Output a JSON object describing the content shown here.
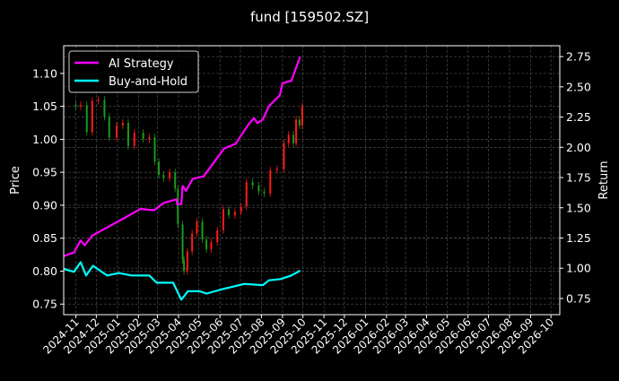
{
  "chart_data": {
    "type": "line",
    "title": "fund [159502.SZ]",
    "ylabel_left": "Price",
    "ylabel_right": "Return",
    "ylim_left": [
      0.734,
      1.142
    ],
    "ylim_right": [
      0.616,
      2.84
    ],
    "xlim": [
      "2024-10-14",
      "2026-10-14"
    ],
    "grid": true,
    "legend_position": "top-left",
    "left_ticks": [
      "0.75",
      "0.80",
      "0.85",
      "0.90",
      "0.95",
      "1.00",
      "1.05",
      "1.10"
    ],
    "right_ticks": [
      "0.75",
      "1.00",
      "1.25",
      "1.50",
      "1.75",
      "2.00",
      "2.25",
      "2.50",
      "2.75"
    ],
    "x_ticks": [
      "2024-11",
      "2024-12",
      "2025-01",
      "2025-02",
      "2025-03",
      "2025-04",
      "2025-05",
      "2025-06",
      "2025-07",
      "2025-08",
      "2025-09",
      "2025-10",
      "2025-11",
      "2025-12",
      "2026-01",
      "2026-02",
      "2026-03",
      "2026-04",
      "2026-05",
      "2026-06",
      "2026-07",
      "2026-08",
      "2026-09",
      "2026-10"
    ],
    "colors": {
      "up": "#ff1a1a",
      "down": "#1a9a1a",
      "strategy": "#ff00ff",
      "buy_hold": "#00ffff",
      "grid": "#555555"
    },
    "price_candles": {
      "axis": "left",
      "dates": [
        "2024-10-14",
        "2024-11-01",
        "2024-11-08",
        "2024-11-17",
        "2024-11-25",
        "2024-12-04",
        "2024-12-13",
        "2024-12-20",
        "2024-12-31",
        "2025-01-09",
        "2025-01-17",
        "2025-01-26",
        "2025-02-08",
        "2025-02-17",
        "2025-02-25",
        "2025-03-03",
        "2025-03-10",
        "2025-03-19",
        "2025-03-27",
        "2025-03-31",
        "2025-04-07",
        "2025-04-09",
        "2025-04-14",
        "2025-04-21",
        "2025-04-28",
        "2025-05-06",
        "2025-05-12",
        "2025-05-19",
        "2025-05-28",
        "2025-06-06",
        "2025-06-14",
        "2025-06-23",
        "2025-07-02",
        "2025-07-10",
        "2025-07-19",
        "2025-07-28",
        "2025-08-05",
        "2025-08-14",
        "2025-08-24",
        "2025-09-03",
        "2025-09-10",
        "2025-09-17",
        "2025-09-21",
        "2025-09-26",
        "2025-09-30"
      ],
      "close": [
        1.052,
        1.05,
        1.052,
        1.011,
        1.058,
        1.06,
        1.034,
        1.003,
        1.021,
        1.025,
        0.99,
        1.01,
        1.0,
        1.003,
        0.966,
        0.946,
        0.941,
        0.95,
        0.925,
        0.871,
        0.817,
        0.8,
        0.83,
        0.857,
        0.875,
        0.848,
        0.833,
        0.844,
        0.862,
        0.894,
        0.885,
        0.89,
        0.898,
        0.935,
        0.93,
        0.921,
        0.918,
        0.953,
        0.955,
        0.994,
        1.007,
        0.994,
        1.03,
        1.021,
        1.05
      ]
    },
    "series": [
      {
        "name": "AI Strategy",
        "axis": "right",
        "dates": [
          "2024-10-14",
          "2024-10-29",
          "2024-11-08",
          "2024-11-14",
          "2024-11-25",
          "2024-12-21",
          "2025-01-13",
          "2025-02-04",
          "2025-02-24",
          "2025-03-10",
          "2025-03-29",
          "2025-03-30",
          "2025-04-05",
          "2025-04-07",
          "2025-04-12",
          "2025-04-22",
          "2025-05-08",
          "2025-05-21",
          "2025-06-07",
          "2025-06-24",
          "2025-07-13",
          "2025-07-21",
          "2025-07-26",
          "2025-08-03",
          "2025-08-12",
          "2025-08-28",
          "2025-09-01",
          "2025-09-14",
          "2025-09-27"
        ],
        "values": [
          1.1,
          1.13,
          1.23,
          1.19,
          1.27,
          1.35,
          1.42,
          1.49,
          1.48,
          1.54,
          1.57,
          1.53,
          1.53,
          1.68,
          1.64,
          1.74,
          1.76,
          1.86,
          1.99,
          2.03,
          2.19,
          2.24,
          2.2,
          2.23,
          2.34,
          2.43,
          2.53,
          2.55,
          2.75
        ]
      },
      {
        "name": "Buy-and-Hold",
        "axis": "right",
        "dates": [
          "2024-10-14",
          "2024-10-29",
          "2024-11-08",
          "2024-11-16",
          "2024-11-26",
          "2024-12-17",
          "2025-01-03",
          "2025-01-22",
          "2025-02-17",
          "2025-02-28",
          "2025-03-24",
          "2025-04-05",
          "2025-04-15",
          "2025-05-02",
          "2025-05-12",
          "2025-06-07",
          "2025-07-07",
          "2025-08-03",
          "2025-08-12",
          "2025-08-29",
          "2025-09-14",
          "2025-09-27"
        ],
        "values": [
          0.995,
          0.97,
          1.05,
          0.94,
          1.02,
          0.94,
          0.96,
          0.94,
          0.94,
          0.88,
          0.88,
          0.74,
          0.81,
          0.81,
          0.79,
          0.83,
          0.87,
          0.86,
          0.9,
          0.91,
          0.94,
          0.98
        ]
      }
    ]
  }
}
